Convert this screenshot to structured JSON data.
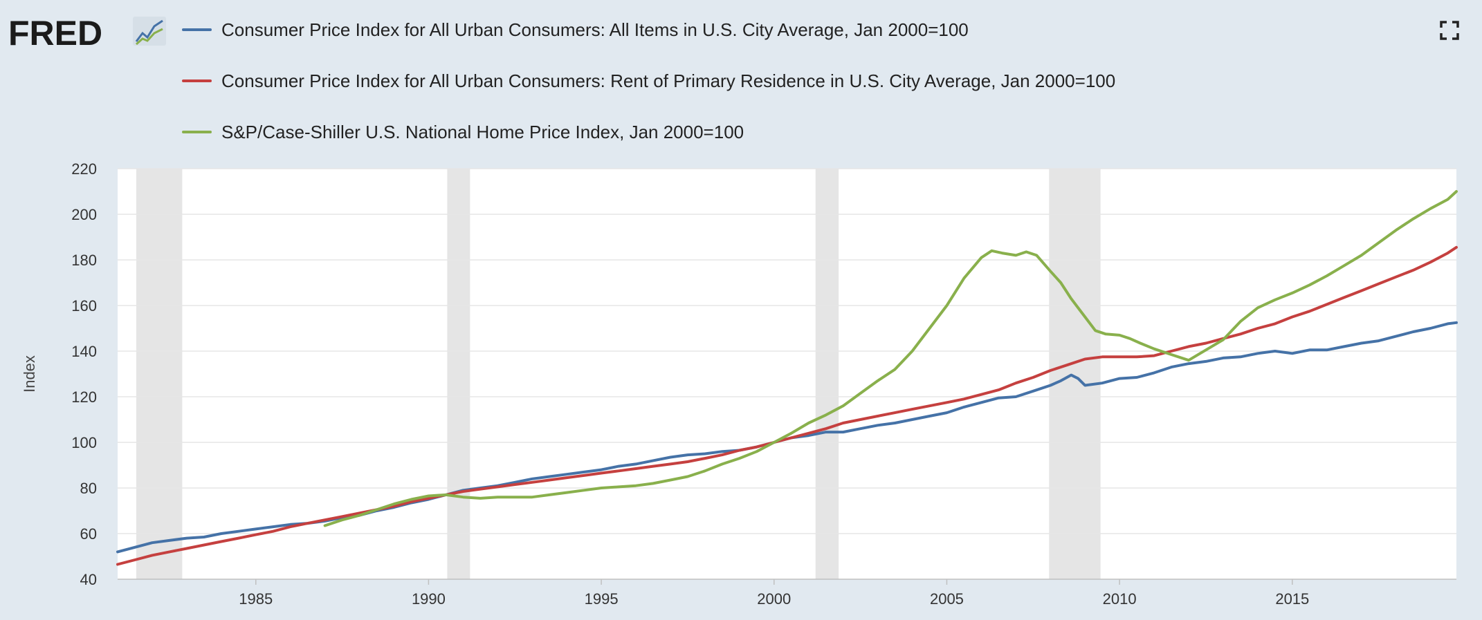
{
  "brand": {
    "name": "FRED"
  },
  "chart_data": {
    "type": "line",
    "title": "",
    "xlabel": "",
    "ylabel": "Index",
    "xlim": [
      1981.0,
      2019.75
    ],
    "ylim": [
      40,
      220
    ],
    "y_ticks": [
      40,
      60,
      80,
      100,
      120,
      140,
      160,
      180,
      200,
      220
    ],
    "x_ticks": [
      1985,
      1990,
      1995,
      2000,
      2005,
      2010,
      2015
    ],
    "grid": true,
    "legend_position": "top-left",
    "recessions": [
      [
        1981.54,
        1982.87
      ],
      [
        1990.54,
        1991.2
      ],
      [
        2001.2,
        2001.87
      ],
      [
        2007.96,
        2009.45
      ]
    ],
    "series": [
      {
        "name": "Consumer Price Index for All Urban Consumers: All Items in U.S. City Average, Jan 2000=100",
        "color": "#4572a7",
        "points": [
          [
            1981.0,
            52
          ],
          [
            1981.5,
            54
          ],
          [
            1982.0,
            56
          ],
          [
            1982.5,
            57
          ],
          [
            1983.0,
            58
          ],
          [
            1983.5,
            58.5
          ],
          [
            1984.0,
            60
          ],
          [
            1984.5,
            61
          ],
          [
            1985.0,
            62
          ],
          [
            1985.5,
            63
          ],
          [
            1986.0,
            64
          ],
          [
            1986.5,
            64.5
          ],
          [
            1987.0,
            65.5
          ],
          [
            1987.5,
            67
          ],
          [
            1988.0,
            68
          ],
          [
            1988.5,
            70
          ],
          [
            1989.0,
            71.5
          ],
          [
            1989.5,
            73.5
          ],
          [
            1990.0,
            75
          ],
          [
            1990.5,
            77
          ],
          [
            1991.0,
            79
          ],
          [
            1991.5,
            80
          ],
          [
            1992.0,
            81
          ],
          [
            1992.5,
            82.5
          ],
          [
            1993.0,
            84
          ],
          [
            1993.5,
            85
          ],
          [
            1994.0,
            86
          ],
          [
            1994.5,
            87
          ],
          [
            1995.0,
            88
          ],
          [
            1995.5,
            89.5
          ],
          [
            1996.0,
            90.5
          ],
          [
            1996.5,
            92
          ],
          [
            1997.0,
            93.5
          ],
          [
            1997.5,
            94.5
          ],
          [
            1998.0,
            95
          ],
          [
            1998.5,
            96
          ],
          [
            1999.0,
            96.5
          ],
          [
            1999.5,
            98
          ],
          [
            2000.0,
            100
          ],
          [
            2000.5,
            102
          ],
          [
            2001.0,
            103
          ],
          [
            2001.5,
            104.5
          ],
          [
            2002.0,
            104.5
          ],
          [
            2002.5,
            106
          ],
          [
            2003.0,
            107.5
          ],
          [
            2003.5,
            108.5
          ],
          [
            2004.0,
            110
          ],
          [
            2004.5,
            111.5
          ],
          [
            2005.0,
            113
          ],
          [
            2005.5,
            115.5
          ],
          [
            2006.0,
            117.5
          ],
          [
            2006.5,
            119.5
          ],
          [
            2007.0,
            120
          ],
          [
            2007.5,
            122.5
          ],
          [
            2008.0,
            125
          ],
          [
            2008.3,
            127
          ],
          [
            2008.6,
            129.5
          ],
          [
            2008.8,
            128
          ],
          [
            2009.0,
            125
          ],
          [
            2009.5,
            126
          ],
          [
            2010.0,
            128
          ],
          [
            2010.5,
            128.5
          ],
          [
            2011.0,
            130.5
          ],
          [
            2011.5,
            133
          ],
          [
            2012.0,
            134.5
          ],
          [
            2012.5,
            135.5
          ],
          [
            2013.0,
            137
          ],
          [
            2013.5,
            137.5
          ],
          [
            2014.0,
            139
          ],
          [
            2014.5,
            140
          ],
          [
            2015.0,
            139
          ],
          [
            2015.5,
            140.5
          ],
          [
            2016.0,
            140.5
          ],
          [
            2016.5,
            142
          ],
          [
            2017.0,
            143.5
          ],
          [
            2017.5,
            144.5
          ],
          [
            2018.0,
            146.5
          ],
          [
            2018.5,
            148.5
          ],
          [
            2019.0,
            150
          ],
          [
            2019.5,
            152
          ],
          [
            2019.75,
            152.5
          ]
        ]
      },
      {
        "name": "Consumer Price Index for All Urban Consumers: Rent of Primary Residence in U.S. City Average, Jan 2000=100",
        "color": "#c5403f",
        "points": [
          [
            1981.0,
            46.5
          ],
          [
            1981.5,
            48.5
          ],
          [
            1982.0,
            50.5
          ],
          [
            1982.5,
            52
          ],
          [
            1983.0,
            53.5
          ],
          [
            1983.5,
            55
          ],
          [
            1984.0,
            56.5
          ],
          [
            1984.5,
            58
          ],
          [
            1985.0,
            59.5
          ],
          [
            1985.5,
            61
          ],
          [
            1986.0,
            63
          ],
          [
            1986.5,
            64.5
          ],
          [
            1987.0,
            66
          ],
          [
            1987.5,
            67.5
          ],
          [
            1988.0,
            69
          ],
          [
            1988.5,
            70.5
          ],
          [
            1989.0,
            72
          ],
          [
            1989.5,
            74
          ],
          [
            1990.0,
            75.5
          ],
          [
            1990.5,
            77
          ],
          [
            1991.0,
            78.5
          ],
          [
            1991.5,
            79.5
          ],
          [
            1992.0,
            80.5
          ],
          [
            1992.5,
            81.5
          ],
          [
            1993.0,
            82.5
          ],
          [
            1993.5,
            83.5
          ],
          [
            1994.0,
            84.5
          ],
          [
            1994.5,
            85.5
          ],
          [
            1995.0,
            86.5
          ],
          [
            1995.5,
            87.5
          ],
          [
            1996.0,
            88.5
          ],
          [
            1996.5,
            89.5
          ],
          [
            1997.0,
            90.5
          ],
          [
            1997.5,
            91.5
          ],
          [
            1998.0,
            93
          ],
          [
            1998.5,
            94.5
          ],
          [
            1999.0,
            96.5
          ],
          [
            1999.5,
            98
          ],
          [
            2000.0,
            100
          ],
          [
            2000.5,
            102
          ],
          [
            2001.0,
            104
          ],
          [
            2001.5,
            106
          ],
          [
            2002.0,
            108.5
          ],
          [
            2002.5,
            110
          ],
          [
            2003.0,
            111.5
          ],
          [
            2003.5,
            113
          ],
          [
            2004.0,
            114.5
          ],
          [
            2004.5,
            116
          ],
          [
            2005.0,
            117.5
          ],
          [
            2005.5,
            119
          ],
          [
            2006.0,
            121
          ],
          [
            2006.5,
            123
          ],
          [
            2007.0,
            126
          ],
          [
            2007.5,
            128.5
          ],
          [
            2008.0,
            131.5
          ],
          [
            2008.5,
            134
          ],
          [
            2009.0,
            136.5
          ],
          [
            2009.5,
            137.5
          ],
          [
            2010.0,
            137.5
          ],
          [
            2010.5,
            137.5
          ],
          [
            2011.0,
            138
          ],
          [
            2011.5,
            140
          ],
          [
            2012.0,
            142
          ],
          [
            2012.5,
            143.5
          ],
          [
            2013.0,
            145.5
          ],
          [
            2013.5,
            147.5
          ],
          [
            2014.0,
            150
          ],
          [
            2014.5,
            152
          ],
          [
            2015.0,
            155
          ],
          [
            2015.5,
            157.5
          ],
          [
            2016.0,
            160.5
          ],
          [
            2016.5,
            163.5
          ],
          [
            2017.0,
            166.5
          ],
          [
            2017.5,
            169.5
          ],
          [
            2018.0,
            172.5
          ],
          [
            2018.5,
            175.5
          ],
          [
            2019.0,
            179
          ],
          [
            2019.5,
            183
          ],
          [
            2019.75,
            185.5
          ]
        ]
      },
      {
        "name": "S&P/Case-Shiller U.S. National Home Price Index, Jan 2000=100",
        "color": "#89b04c",
        "points": [
          [
            1987.0,
            63.5
          ],
          [
            1987.5,
            66
          ],
          [
            1988.0,
            68
          ],
          [
            1988.5,
            70.5
          ],
          [
            1989.0,
            73
          ],
          [
            1989.5,
            75
          ],
          [
            1990.0,
            76.5
          ],
          [
            1990.5,
            77
          ],
          [
            1991.0,
            76
          ],
          [
            1991.5,
            75.5
          ],
          [
            1992.0,
            76
          ],
          [
            1992.5,
            76
          ],
          [
            1993.0,
            76
          ],
          [
            1993.5,
            77
          ],
          [
            1994.0,
            78
          ],
          [
            1994.5,
            79
          ],
          [
            1995.0,
            80
          ],
          [
            1995.5,
            80.5
          ],
          [
            1996.0,
            81
          ],
          [
            1996.5,
            82
          ],
          [
            1997.0,
            83.5
          ],
          [
            1997.5,
            85
          ],
          [
            1998.0,
            87.5
          ],
          [
            1998.5,
            90.5
          ],
          [
            1999.0,
            93
          ],
          [
            1999.5,
            96
          ],
          [
            2000.0,
            100
          ],
          [
            2000.5,
            104
          ],
          [
            2001.0,
            108.5
          ],
          [
            2001.5,
            112
          ],
          [
            2002.0,
            116
          ],
          [
            2002.5,
            121.5
          ],
          [
            2003.0,
            127
          ],
          [
            2003.5,
            132
          ],
          [
            2004.0,
            140
          ],
          [
            2004.5,
            150
          ],
          [
            2005.0,
            160
          ],
          [
            2005.5,
            172
          ],
          [
            2006.0,
            181
          ],
          [
            2006.3,
            184
          ],
          [
            2006.6,
            183
          ],
          [
            2007.0,
            182
          ],
          [
            2007.3,
            183.5
          ],
          [
            2007.6,
            182
          ],
          [
            2008.0,
            175
          ],
          [
            2008.3,
            170
          ],
          [
            2008.6,
            163
          ],
          [
            2009.0,
            155
          ],
          [
            2009.3,
            149
          ],
          [
            2009.6,
            147.5
          ],
          [
            2010.0,
            147
          ],
          [
            2010.3,
            145.5
          ],
          [
            2010.6,
            143.5
          ],
          [
            2011.0,
            141
          ],
          [
            2011.5,
            138.5
          ],
          [
            2012.0,
            136
          ],
          [
            2012.5,
            140.5
          ],
          [
            2013.0,
            145
          ],
          [
            2013.5,
            153
          ],
          [
            2014.0,
            159
          ],
          [
            2014.5,
            162.5
          ],
          [
            2015.0,
            165.5
          ],
          [
            2015.5,
            169
          ],
          [
            2016.0,
            173
          ],
          [
            2016.5,
            177.5
          ],
          [
            2017.0,
            182
          ],
          [
            2017.5,
            187.5
          ],
          [
            2018.0,
            193
          ],
          [
            2018.5,
            198
          ],
          [
            2019.0,
            202.5
          ],
          [
            2019.5,
            206.5
          ],
          [
            2019.75,
            210
          ]
        ]
      }
    ]
  }
}
